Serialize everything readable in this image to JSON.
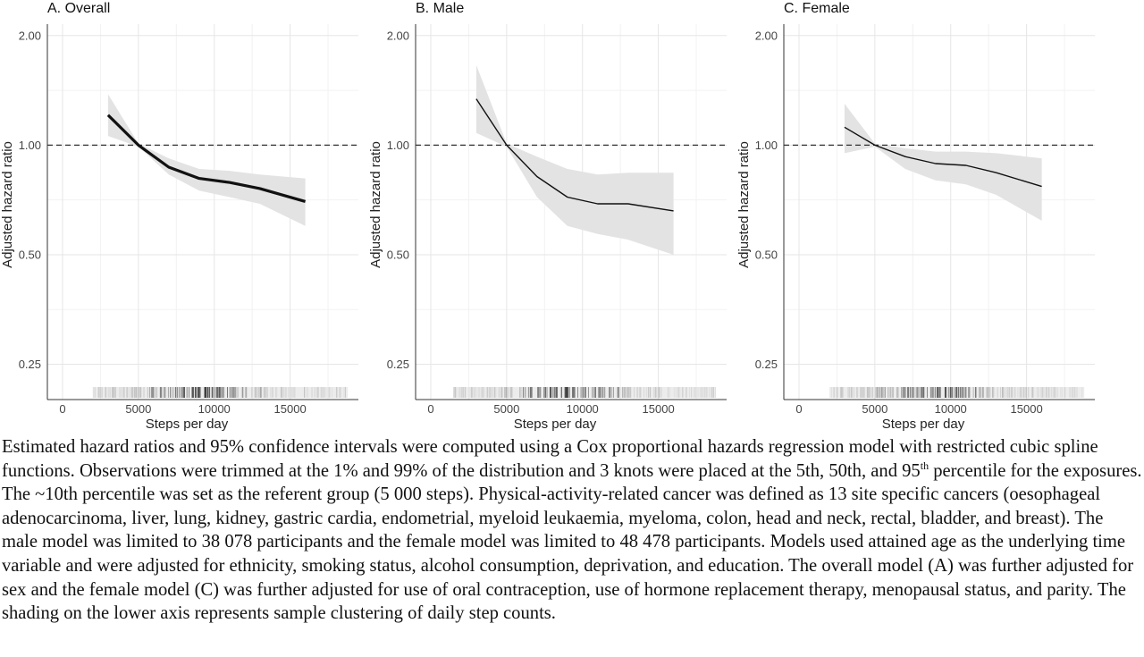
{
  "chart_data": [
    {
      "type": "line",
      "title": "A. Overall",
      "xlabel": "Steps per day",
      "ylabel": "Adjusted hazard ratio",
      "xlim": [
        -1000,
        19500
      ],
      "ylim": [
        0.2,
        2.15
      ],
      "y_scale": "log",
      "x_ticks": [
        0,
        5000,
        10000,
        15000
      ],
      "x_tick_labels": [
        "0",
        "5000",
        "10000",
        "15000"
      ],
      "y_ticks": [
        0.25,
        0.5,
        1.0,
        2.0
      ],
      "y_tick_labels": [
        "0.25",
        "0.50",
        "1.00",
        "2.00"
      ],
      "reference_line": 1.0,
      "grid": true,
      "line_weight": "bold",
      "rug_range": [
        2000,
        18800
      ],
      "x": [
        3000,
        5000,
        7000,
        9000,
        11000,
        13000,
        16000
      ],
      "series": [
        {
          "y": [
            1.21,
            1.0,
            0.87,
            0.81,
            0.79,
            0.76,
            0.7
          ]
        }
      ],
      "ci_lower": [
        1.06,
        0.99,
        0.83,
        0.75,
        0.72,
        0.69,
        0.6
      ],
      "ci_upper": [
        1.38,
        1.01,
        0.92,
        0.86,
        0.85,
        0.83,
        0.81
      ]
    },
    {
      "type": "line",
      "title": "B. Male",
      "xlabel": "Steps per day",
      "ylabel": "Adjusted hazard ratio",
      "xlim": [
        -1000,
        19500
      ],
      "ylim": [
        0.2,
        2.15
      ],
      "y_scale": "log",
      "x_ticks": [
        0,
        5000,
        10000,
        15000
      ],
      "x_tick_labels": [
        "0",
        "5000",
        "10000",
        "15000"
      ],
      "y_ticks": [
        0.25,
        0.5,
        1.0,
        2.0
      ],
      "y_tick_labels": [
        "0.25",
        "0.50",
        "1.00",
        "2.00"
      ],
      "reference_line": 1.0,
      "grid": true,
      "line_weight": "thin",
      "rug_range": [
        1500,
        18800
      ],
      "x": [
        3000,
        5000,
        7000,
        9000,
        11000,
        13000,
        16000
      ],
      "series": [
        {
          "y": [
            1.34,
            1.0,
            0.82,
            0.72,
            0.69,
            0.69,
            0.66
          ]
        }
      ],
      "ci_lower": [
        1.08,
        0.99,
        0.72,
        0.6,
        0.57,
        0.55,
        0.5
      ],
      "ci_upper": [
        1.66,
        1.01,
        0.93,
        0.86,
        0.83,
        0.84,
        0.84
      ]
    },
    {
      "type": "line",
      "title": "C. Female",
      "xlabel": "Steps per day",
      "ylabel": "Adjusted hazard ratio",
      "xlim": [
        -1000,
        19500
      ],
      "ylim": [
        0.2,
        2.15
      ],
      "y_scale": "log",
      "x_ticks": [
        0,
        5000,
        10000,
        15000
      ],
      "x_tick_labels": [
        "0",
        "5000",
        "10000",
        "15000"
      ],
      "y_ticks": [
        0.25,
        0.5,
        1.0,
        2.0
      ],
      "y_tick_labels": [
        "0.25",
        "0.50",
        "1.00",
        "2.00"
      ],
      "reference_line": 1.0,
      "grid": true,
      "line_weight": "thin",
      "rug_range": [
        2000,
        18800
      ],
      "x": [
        3000,
        5000,
        7000,
        9000,
        11000,
        13000,
        16000
      ],
      "series": [
        {
          "y": [
            1.12,
            1.0,
            0.93,
            0.89,
            0.88,
            0.84,
            0.77
          ]
        }
      ],
      "ci_lower": [
        0.95,
        0.99,
        0.86,
        0.8,
        0.78,
        0.73,
        0.62
      ],
      "ci_upper": [
        1.3,
        1.01,
        0.98,
        0.96,
        0.96,
        0.95,
        0.92
      ]
    }
  ],
  "caption": {
    "text_1": "Estimated hazard ratios and 95% confidence intervals were computed using a Cox proportional hazards regression model with restricted cubic spline functions. Observations were trimmed at the 1% and 99% of the distribution and 3 knots were placed at the 5th, 50th, and 95",
    "sup": "th",
    "text_2": " percentile for the exposures. The ~10th percentile was set as the referent group (5 000 steps). Physical-activity-related cancer was defined as 13 site specific cancers (oesophageal adenocarcinoma, liver, lung, kidney, gastric cardia, endometrial, myeloid leukaemia, myeloma, colon, head and neck, rectal, bladder, and breast). The male model was limited to 38 078 participants and the female model was limited to 48 478 participants. Models used attained age as the underlying time variable and were adjusted for ethnicity, smoking status, alcohol consumption, deprivation, and education. The overall model (A) was further adjusted for sex and the female model (C) was further adjusted for use of oral contraception, use of hormone replacement therapy, menopausal status, and parity. The shading on the lower axis represents sample clustering of daily step counts."
  },
  "colors": {
    "line": "#111111",
    "ci_band": "#e3e3e3",
    "grid": "#e6e6e6",
    "axis": "#333333",
    "reference_line": "#333333"
  }
}
